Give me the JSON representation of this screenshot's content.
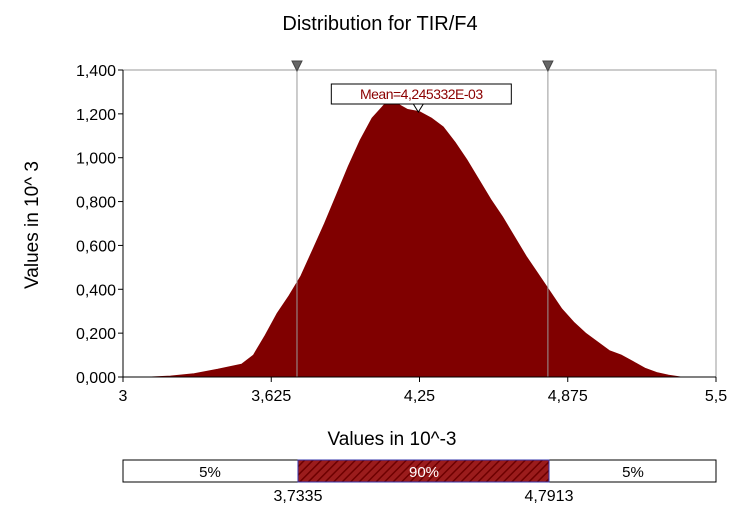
{
  "chart_data": {
    "type": "area",
    "title": "Distribution for TIR/F4",
    "xlabel": "Values in 10^-3",
    "ylabel": "Values in 10^ 3",
    "xlim": [
      3,
      5.5
    ],
    "ylim": [
      0,
      1.4
    ],
    "x_ticks": [
      "3",
      "3,625",
      "4,25",
      "4,875",
      "5,5"
    ],
    "y_ticks": [
      "0,000",
      "0,200",
      "0,400",
      "0,600",
      "0,800",
      "1,000",
      "1,200",
      "1,400"
    ],
    "mean_label": "Mean=4,245332E-03",
    "mean_x": 4.245,
    "markers": [
      3.7335,
      4.7913
    ],
    "fill_color": "#800000",
    "series": [
      {
        "x": [
          3.12,
          3.2,
          3.3,
          3.4,
          3.5,
          3.55,
          3.6,
          3.65,
          3.7,
          3.75,
          3.8,
          3.85,
          3.9,
          3.95,
          4.0,
          4.05,
          4.1,
          4.15,
          4.2,
          4.25,
          4.3,
          4.35,
          4.4,
          4.45,
          4.5,
          4.55,
          4.6,
          4.65,
          4.7,
          4.75,
          4.8,
          4.85,
          4.9,
          4.95,
          5.0,
          5.05,
          5.1,
          5.15,
          5.2,
          5.25,
          5.3,
          5.35
        ],
        "values": [
          0.0,
          0.004,
          0.015,
          0.035,
          0.058,
          0.1,
          0.19,
          0.29,
          0.37,
          0.46,
          0.58,
          0.7,
          0.83,
          0.96,
          1.08,
          1.18,
          1.24,
          1.25,
          1.22,
          1.21,
          1.18,
          1.14,
          1.07,
          0.99,
          0.9,
          0.81,
          0.73,
          0.64,
          0.55,
          0.47,
          0.39,
          0.31,
          0.25,
          0.2,
          0.16,
          0.12,
          0.1,
          0.07,
          0.04,
          0.02,
          0.008,
          0.0
        ]
      }
    ]
  },
  "band": {
    "left_pct": "5%",
    "mid_pct": "90%",
    "right_pct": "5%",
    "left_value": "3,7335",
    "right_value": "4,7913"
  }
}
